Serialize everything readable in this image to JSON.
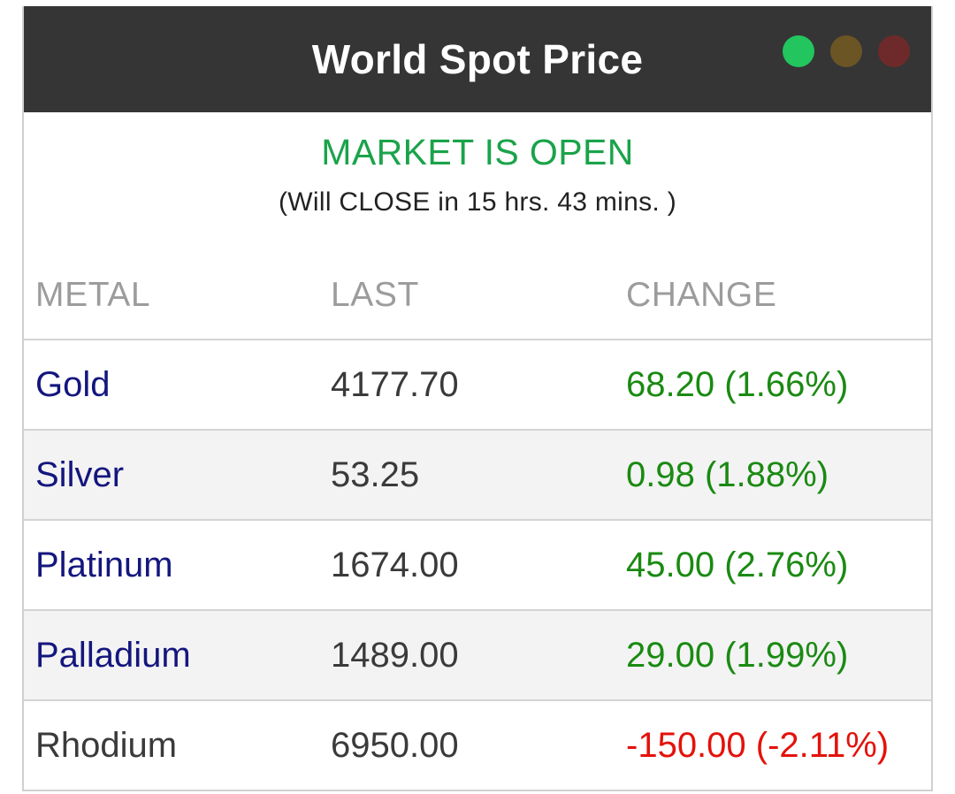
{
  "header": {
    "title": "World Spot Price",
    "lights": [
      "#22c55e",
      "#6b5524",
      "#6e2a2a"
    ]
  },
  "market": {
    "status": "MARKET IS OPEN",
    "status_color": "#1aa34a",
    "countdown": "(Will CLOSE in 15 hrs. 43 mins. )"
  },
  "table": {
    "columns": [
      "METAL",
      "LAST",
      "CHANGE"
    ],
    "rows": [
      {
        "metal": "Gold",
        "last": "4177.70",
        "change": "68.20 (1.66%)",
        "metal_color": "#14167e",
        "change_color": "#1a8a12"
      },
      {
        "metal": "Silver",
        "last": "53.25",
        "change": "0.98 (1.88%)",
        "metal_color": "#14167e",
        "change_color": "#1a8a12"
      },
      {
        "metal": "Platinum",
        "last": "1674.00",
        "change": "45.00 (2.76%)",
        "metal_color": "#14167e",
        "change_color": "#1a8a12"
      },
      {
        "metal": "Palladium",
        "last": "1489.00",
        "change": "29.00 (1.99%)",
        "metal_color": "#14167e",
        "change_color": "#1a8a12"
      },
      {
        "metal": "Rhodium",
        "last": "6950.00",
        "change": "-150.00 (-2.11%)",
        "metal_color": "#3a3a3a",
        "change_color": "#e3120b"
      }
    ]
  }
}
